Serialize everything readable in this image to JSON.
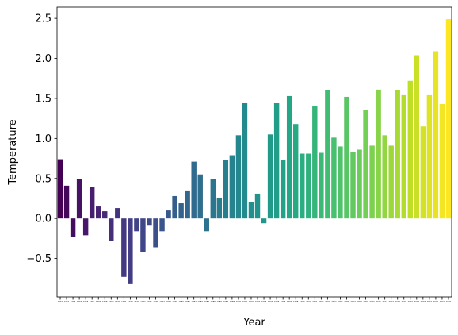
{
  "chart_data": {
    "type": "bar",
    "xlabel": "Year",
    "ylabel": "Temperature",
    "ylim": [
      -0.98,
      2.64
    ],
    "yticks": [
      -0.5,
      0.0,
      0.5,
      1.0,
      1.5,
      2.0,
      2.5
    ],
    "ytick_labels": [
      "−0.5",
      "0.0",
      "0.5",
      "1.0",
      "1.5",
      "2.0",
      "2.5"
    ],
    "grid": false,
    "legend": "none",
    "colormap": "viridis",
    "categories": [
      "1961",
      "1962",
      "1963",
      "1964",
      "1965",
      "1966",
      "1967",
      "1968",
      "1969",
      "1970",
      "1971",
      "1972",
      "1973",
      "1974",
      "1975",
      "1976",
      "1977",
      "1978",
      "1979",
      "1980",
      "1981",
      "1982",
      "1983",
      "1984",
      "1985",
      "1986",
      "1987",
      "1988",
      "1989",
      "1990",
      "1991",
      "1992",
      "1993",
      "1994",
      "1995",
      "1996",
      "1997",
      "1998",
      "1999",
      "2000",
      "2001",
      "2002",
      "2003",
      "2004",
      "2005",
      "2006",
      "2007",
      "2008",
      "2009",
      "2010",
      "2011",
      "2012",
      "2013",
      "2014",
      "2015",
      "2016",
      "2017",
      "2018",
      "2019",
      "2020",
      "2021",
      "2022"
    ],
    "values": [
      0.74,
      0.41,
      -0.23,
      0.49,
      -0.21,
      0.39,
      0.15,
      0.09,
      -0.28,
      0.13,
      -0.73,
      -0.82,
      -0.16,
      -0.42,
      -0.09,
      -0.36,
      -0.16,
      0.1,
      0.28,
      0.19,
      0.35,
      0.71,
      0.55,
      -0.16,
      0.49,
      0.26,
      0.73,
      0.79,
      1.04,
      1.44,
      0.21,
      0.31,
      -0.06,
      1.05,
      1.44,
      0.73,
      1.53,
      1.18,
      0.81,
      0.81,
      1.4,
      0.82,
      1.6,
      1.01,
      0.9,
      1.52,
      0.83,
      0.86,
      1.36,
      0.91,
      1.61,
      1.04,
      0.91,
      1.6,
      1.54,
      1.72,
      2.04,
      1.15,
      1.54,
      2.09,
      1.43,
      2.49
    ]
  }
}
